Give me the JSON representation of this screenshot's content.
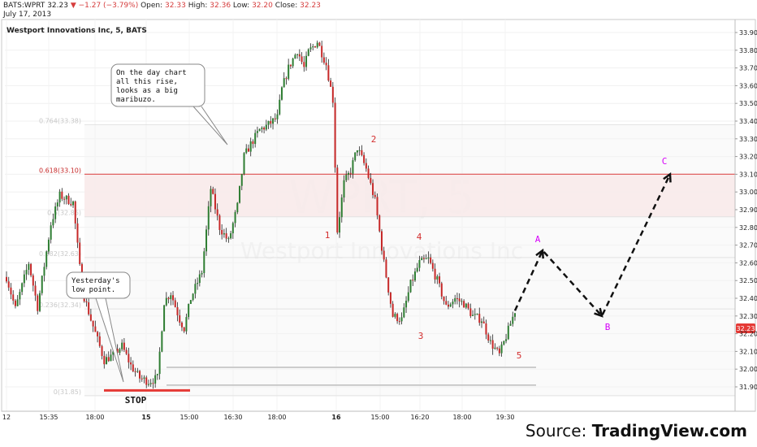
{
  "header": {
    "symbol": "BATS:WPRT",
    "last": "32.23",
    "change": "▼ −1.27 (−3.79%)",
    "open_label": "Open:",
    "open": "32.33",
    "high_label": "High:",
    "high": "32.36",
    "low_label": "Low:",
    "low": "32.20",
    "close_label": "Close:",
    "close": "32.23",
    "date": "July 17, 2013"
  },
  "chart_data": {
    "type": "candlestick",
    "title": "Westport Innovations Inc, 5, BATS",
    "watermark_symbol": "WPRT, 5",
    "watermark_name": "Westport Innovations Inc",
    "ylim": [
      31.86,
      33.95
    ],
    "y_ticks": [
      "33.90",
      "33.80",
      "33.70",
      "33.60",
      "33.50",
      "33.40",
      "33.30",
      "33.20",
      "33.10",
      "33.00",
      "32.90",
      "32.80",
      "32.70",
      "32.60",
      "32.50",
      "32.40",
      "32.30",
      "32.20",
      "32.10",
      "32.00",
      "31.90"
    ],
    "x_ticks": [
      "12",
      "15:35",
      "18:00",
      "15",
      "15:00",
      "16:30",
      "18:00",
      "16",
      "15:00",
      "16:20",
      "18:00",
      "19:30"
    ],
    "last_price_label": "32.23",
    "fib_levels": [
      {
        "label": "0.618(33.10)",
        "value": 33.1,
        "highlight": true
      },
      {
        "label": "0.5(32.86)",
        "value": 32.86,
        "highlight": false
      },
      {
        "label": "0.382(32.63)",
        "value": 32.63,
        "highlight": false
      },
      {
        "label": "0.236(32.34)",
        "value": 32.34,
        "highlight": false
      },
      {
        "label": "0.764(33.38)",
        "value": 33.38,
        "highlight": false
      },
      {
        "label": "0(31.85)",
        "value": 31.85,
        "highlight": false
      }
    ],
    "support_lines": [
      32.01,
      31.91
    ],
    "stop_level": 31.88,
    "stop_label": "STOP",
    "wave_labels": [
      {
        "text": "1",
        "price": 32.74
      },
      {
        "text": "2",
        "price": 33.28
      },
      {
        "text": "3",
        "price": 32.17
      },
      {
        "text": "4",
        "price": 32.73
      },
      {
        "text": "5",
        "price": 32.06
      }
    ],
    "projection": [
      {
        "label": "",
        "price": 32.33
      },
      {
        "label": "A",
        "price": 32.67
      },
      {
        "label": "B",
        "price": 32.3
      },
      {
        "label": "C",
        "price": 33.1
      }
    ],
    "annotations": [
      "On the day chart all this rise, looks as a big maribuzo.",
      "Yesterday's low point."
    ],
    "series_anchors": [
      [
        0,
        32.52
      ],
      [
        4,
        32.34
      ],
      [
        10,
        32.6
      ],
      [
        14,
        32.35
      ],
      [
        20,
        32.82
      ],
      [
        24,
        32.98
      ],
      [
        30,
        32.94
      ],
      [
        34,
        32.45
      ],
      [
        38,
        32.28
      ],
      [
        44,
        32.05
      ],
      [
        48,
        32.08
      ],
      [
        52,
        32.13
      ],
      [
        56,
        32.02
      ],
      [
        60,
        31.95
      ],
      [
        64,
        31.93
      ],
      [
        68,
        31.95
      ],
      [
        71,
        32.38
      ],
      [
        74,
        32.43
      ],
      [
        78,
        32.28
      ],
      [
        80,
        32.23
      ],
      [
        83,
        32.4
      ],
      [
        88,
        32.55
      ],
      [
        90,
        32.78
      ],
      [
        92,
        33.02
      ],
      [
        96,
        32.8
      ],
      [
        100,
        32.72
      ],
      [
        104,
        32.92
      ],
      [
        107,
        33.2
      ],
      [
        110,
        33.27
      ],
      [
        114,
        33.35
      ],
      [
        118,
        33.38
      ],
      [
        122,
        33.42
      ],
      [
        124,
        33.58
      ],
      [
        127,
        33.7
      ],
      [
        131,
        33.8
      ],
      [
        134,
        33.7
      ],
      [
        136,
        33.79
      ],
      [
        140,
        33.85
      ],
      [
        144,
        33.72
      ],
      [
        147,
        33.52
      ],
      [
        149,
        32.78
      ],
      [
        152,
        33.05
      ],
      [
        155,
        33.12
      ],
      [
        158,
        33.25
      ],
      [
        162,
        33.13
      ],
      [
        166,
        32.95
      ],
      [
        170,
        32.6
      ],
      [
        174,
        32.3
      ],
      [
        178,
        32.28
      ],
      [
        182,
        32.48
      ],
      [
        186,
        32.6
      ],
      [
        190,
        32.62
      ],
      [
        194,
        32.5
      ],
      [
        198,
        32.35
      ],
      [
        202,
        32.4
      ],
      [
        206,
        32.37
      ],
      [
        210,
        32.3
      ],
      [
        214,
        32.28
      ],
      [
        218,
        32.15
      ],
      [
        222,
        32.08
      ],
      [
        226,
        32.22
      ],
      [
        229,
        32.33
      ]
    ]
  },
  "source": {
    "prefix": "Source:",
    "name": "TradingView.com"
  }
}
